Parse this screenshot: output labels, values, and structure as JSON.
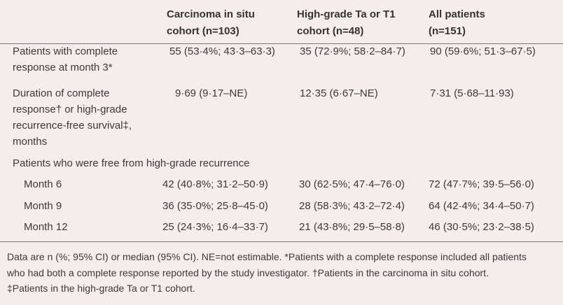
{
  "table": {
    "columns": [
      [
        "Carcinoma in situ",
        "cohort (n=103)"
      ],
      [
        "High-grade Ta or T1",
        "cohort (n=48)"
      ],
      [
        "All patients",
        "(n=151)"
      ]
    ],
    "rows": [
      {
        "label": [
          "Patients with complete",
          "response at month 3*"
        ],
        "values": [
          "55 (53·4%; 43·3–63·3)",
          "35 (72·9%; 58·2–84·7)",
          "90 (59·6%; 51·3–67·5)"
        ]
      },
      {
        "label": [
          "Duration of complete",
          "response† or high-grade",
          "recurrence-free survival‡,",
          "months"
        ],
        "values": [
          "9·69 (9·17–NE)",
          "12·35 (6·67–NE)",
          "7·31 (5·68–11·93)"
        ]
      }
    ],
    "section": "Patients who were free from high-grade recurrence",
    "subrows": [
      {
        "label": "Month 6",
        "values": [
          "42 (40·8%; 31·2–50·9)",
          "30 (62·5%; 47·4–76·0)",
          "72 (47·7%; 39·5–56·0)"
        ]
      },
      {
        "label": "Month 9",
        "values": [
          "36 (35·0%; 25·8–45·0)",
          "28 (58·3%; 43·2–72·4)",
          "64 (42·4%; 34·4–50·7)"
        ]
      },
      {
        "label": "Month 12",
        "values": [
          "25 (24·3%; 16·4–33·7)",
          "21 (43·8%; 29·5–58·8)",
          "46 (30·5%; 23·2–38·5)"
        ]
      }
    ],
    "footnote": [
      "Data are n (%; 95% CI) or median (95% CI). NE=not estimable. *Patients with a complete response included all patients",
      "who had both a complete response reported by the study investigator. †Patients in the carcinoma in situ cohort.",
      "‡Patients in the high-grade Ta or T1 cohort."
    ]
  }
}
